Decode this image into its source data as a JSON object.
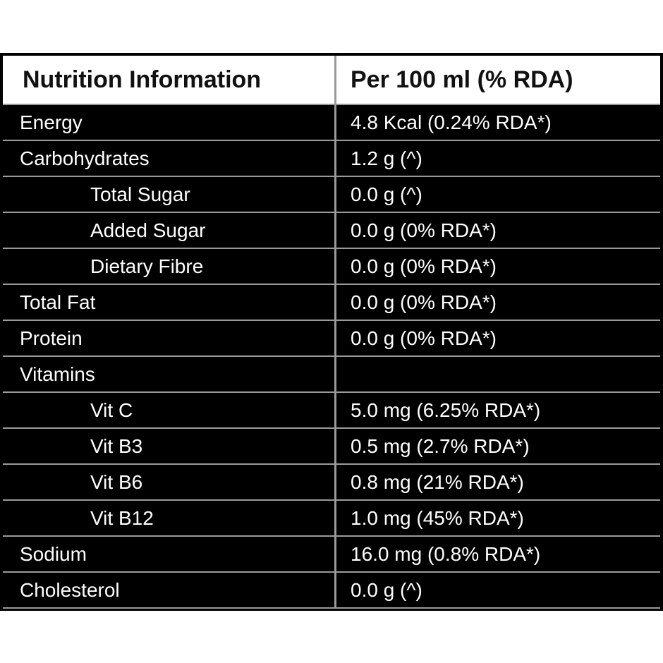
{
  "table": {
    "header": [
      "Nutrition Information",
      "Per 100 ml (% RDA)"
    ],
    "rows": [
      {
        "label": "Energy",
        "value": "4.8 Kcal (0.24% RDA*)"
      },
      {
        "label": "Carbohydrates",
        "value": "1.2 g (^)",
        "children": [
          {
            "label": "Total Sugar",
            "value": "0.0 g (^)"
          },
          {
            "label": "Added Sugar",
            "value": "0.0 g (0% RDA*)"
          },
          {
            "label": "Dietary Fibre",
            "value": "0.0 g (0% RDA*)"
          }
        ]
      },
      {
        "label": "Total Fat",
        "value": "0.0 g (0% RDA*)"
      },
      {
        "label": "Protein",
        "value": "0.0 g (0% RDA*)"
      },
      {
        "label": "Vitamins",
        "children": [
          {
            "label": "Vit C",
            "value": "5.0 mg (6.25% RDA*)"
          },
          {
            "label": "Vit B3",
            "value": "0.5 mg (2.7% RDA*)"
          },
          {
            "label": "Vit B6",
            "value": "0.8 mg (21% RDA*)"
          },
          {
            "label": "Vit B12",
            "value": "1.0 mg (45% RDA*)"
          }
        ]
      },
      {
        "label": "Sodium",
        "value": "16.0 mg (0.8% RDA*)"
      },
      {
        "label": "Cholesterol",
        "value": "0.0 g (^)"
      }
    ]
  }
}
